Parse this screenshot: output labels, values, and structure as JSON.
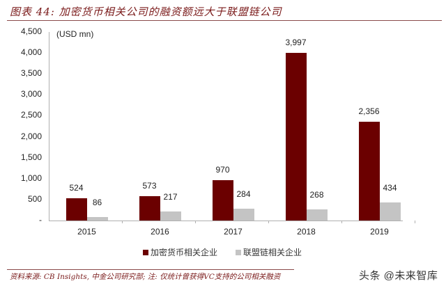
{
  "header": {
    "title": "图表 44: 加密货币相关公司的融资额远大于联盟链公司"
  },
  "chart_data": {
    "type": "bar",
    "title": "加密货币相关公司的融资额远大于联盟链公司",
    "unit_label": "(USD mn)",
    "xlabel": "",
    "ylabel": "USD mn",
    "ylim": [
      0,
      4500
    ],
    "yticks": [
      "-",
      "500",
      "1,000",
      "1,500",
      "2,000",
      "2,500",
      "3,000",
      "3,500",
      "4,000",
      "4,500"
    ],
    "categories": [
      "2015",
      "2016",
      "2017",
      "2018",
      "2019"
    ],
    "series": [
      {
        "name": "加密货币相关企业",
        "color": "#6b0000",
        "values": [
          524,
          573,
          970,
          3997,
          2356
        ],
        "labels": [
          "524",
          "573",
          "970",
          "3,997",
          "2,356"
        ]
      },
      {
        "name": "联盟链相关企业",
        "color": "#c4c4c4",
        "values": [
          86,
          217,
          284,
          268,
          434
        ],
        "labels": [
          "86",
          "217",
          "284",
          "268",
          "434"
        ]
      }
    ],
    "grid": false,
    "legend_position": "bottom"
  },
  "footer": {
    "source": "资料来源: CB Insights, 中金公司研究部; 注: 仅统计曾获得VC支持的公司相关融资",
    "watermark": "头条 @未来智库"
  }
}
